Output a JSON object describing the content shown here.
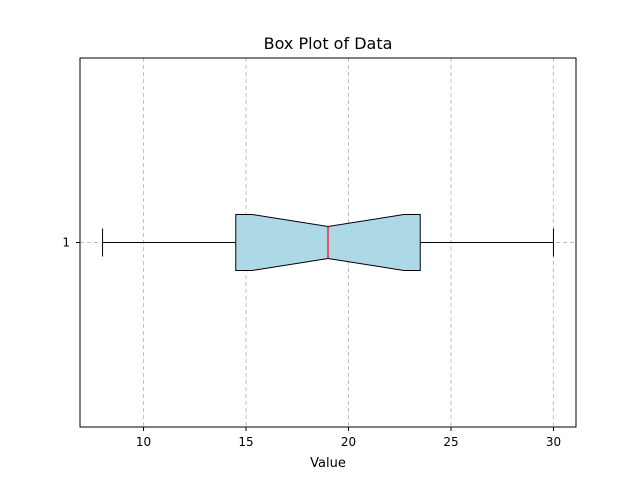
{
  "chart_data": {
    "type": "box",
    "orientation": "horizontal",
    "notched": true,
    "title": "Box Plot of Data",
    "xlabel": "Value",
    "ylabel": "",
    "xlim": [
      6.9,
      31.1
    ],
    "xticks": [
      10,
      15,
      20,
      25,
      30
    ],
    "ytick_labels": [
      "1"
    ],
    "grid": {
      "x": true,
      "y": true,
      "style": "dashed"
    },
    "boxes": [
      {
        "label": "1",
        "whisker_low": 8,
        "q1": 14.5,
        "median": 19,
        "q3": 23.5,
        "whisker_high": 30,
        "notch_low": 15.3,
        "notch_high": 22.7
      }
    ],
    "colors": {
      "box_fill": "#add8e6",
      "median": "#ff0000",
      "grid": "#c0c0c0",
      "axis": "#000000"
    }
  }
}
